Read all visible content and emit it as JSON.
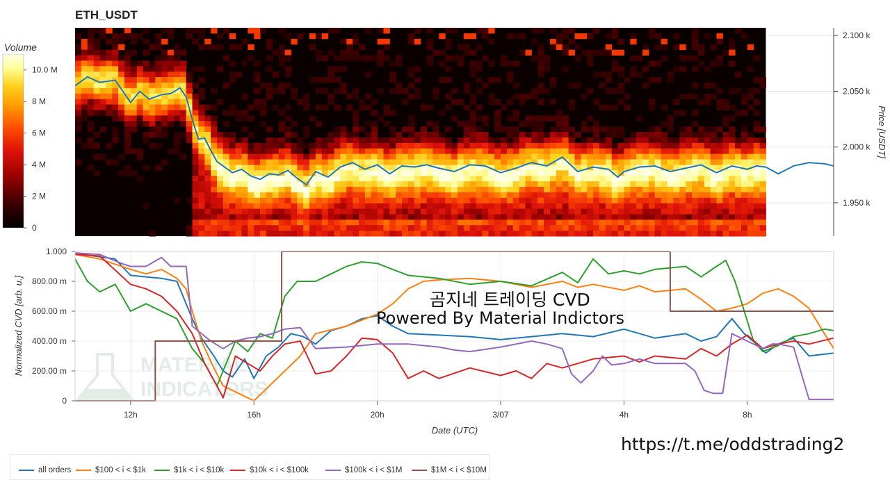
{
  "title": "ETH_USDT",
  "colorbar": {
    "title": "Volume",
    "ticks": [
      "0",
      "2 M",
      "4 M",
      "6 M",
      "8 M",
      "10.0 M"
    ],
    "colors": [
      "#000000",
      "#3b0000",
      "#9a0000",
      "#e0140a",
      "#ff5000",
      "#ff9900",
      "#ffd21e",
      "#ffff9a",
      "#ffffe6"
    ]
  },
  "watermark": {
    "line1": "곰지네 트레이딩 CVD",
    "line2": "Powered By Material Indictors",
    "logo_text": "MATERIAL INDICATORS"
  },
  "url": "https://t.me/oddstrading2",
  "chart_data": [
    {
      "type": "heatmap",
      "title": "ETH_USDT",
      "ylabel": "Price [USDT]",
      "ylim": [
        1920,
        2107
      ],
      "price_ticks": [
        "2.100 k",
        "2.050 k",
        "2.000 k",
        "1.950 k"
      ],
      "price_tick_values": [
        2100,
        2050,
        2000,
        1950
      ],
      "time_ticks": [
        "12h",
        "16h",
        "20h",
        "3/07",
        "4h",
        "8h"
      ],
      "time_tick_values": [
        12,
        16,
        20,
        24,
        28,
        32
      ],
      "xlim": [
        10.2,
        34.8
      ],
      "heatmap_end_hour": 32.6,
      "price_series": {
        "name": "price",
        "color": "#1f77b4",
        "x": [
          10.2,
          10.6,
          11.0,
          11.5,
          12.0,
          12.3,
          12.6,
          13.0,
          13.3,
          13.6,
          13.8,
          14.0,
          14.2,
          14.4,
          14.6,
          14.8,
          15.0,
          15.3,
          15.6,
          15.9,
          16.2,
          16.5,
          16.8,
          17.1,
          17.4,
          17.7,
          18.0,
          18.4,
          18.8,
          19.2,
          19.6,
          20.0,
          20.4,
          20.8,
          21.2,
          21.6,
          22.0,
          22.5,
          23.0,
          23.5,
          24.0,
          24.5,
          25.0,
          25.5,
          26.0,
          26.5,
          27.0,
          27.5,
          27.8,
          28.0,
          28.5,
          29.0,
          29.5,
          30.0,
          30.5,
          31.0,
          31.5,
          32.0,
          32.3,
          32.6,
          33.0,
          33.5,
          34.0,
          34.5,
          34.8
        ],
        "y": [
          2055,
          2063,
          2058,
          2060,
          2040,
          2050,
          2043,
          2047,
          2048,
          2053,
          2045,
          2025,
          2007,
          2008,
          1997,
          1987,
          1983,
          1977,
          1980,
          1974,
          1971,
          1976,
          1975,
          1979,
          1972,
          1966,
          1978,
          1973,
          1982,
          1986,
          1980,
          1984,
          1976,
          1983,
          1982,
          1984,
          1981,
          1978,
          1984,
          1983,
          1977,
          1981,
          1986,
          1983,
          1991,
          1978,
          1982,
          1980,
          1973,
          1978,
          1982,
          1983,
          1978,
          1981,
          1984,
          1977,
          1983,
          1980,
          1983,
          1982,
          1976,
          1983,
          1986,
          1985,
          1983
        ]
      }
    },
    {
      "type": "line",
      "ylabel": "Normalized CVD [arb. u.]",
      "xlabel": "Date (UTC)",
      "ylim": [
        0,
        1
      ],
      "xlim": [
        10.2,
        34.8
      ],
      "y_ticks": [
        "0",
        "200.00 m",
        "400.00 m",
        "600.00 m",
        "800.00 m",
        "1.000"
      ],
      "y_tick_values": [
        0,
        0.2,
        0.4,
        0.6,
        0.8,
        1.0
      ],
      "x_ticks": [
        "12h",
        "16h",
        "20h",
        "3/07",
        "4h",
        "8h"
      ],
      "x_tick_values": [
        12,
        16,
        20,
        24,
        28,
        32
      ],
      "series": [
        {
          "name": "all orders",
          "color": "#1f77b4",
          "x": [
            10.2,
            10.8,
            11.5,
            12.0,
            12.5,
            13.0,
            13.5,
            14.0,
            14.3,
            14.7,
            15.0,
            15.3,
            15.7,
            16.0,
            16.4,
            16.8,
            17.2,
            17.6,
            18.0,
            18.5,
            19.0,
            19.5,
            20.0,
            20.5,
            21.0,
            22.0,
            23.0,
            24.0,
            25.0,
            26.0,
            27.0,
            28.0,
            29.0,
            30.0,
            30.5,
            31.0,
            31.5,
            31.9,
            32.3,
            32.6,
            33.0,
            33.5,
            34.0,
            34.8
          ],
          "y": [
            0.99,
            0.97,
            0.95,
            0.84,
            0.83,
            0.82,
            0.8,
            0.55,
            0.42,
            0.3,
            0.2,
            0.16,
            0.28,
            0.15,
            0.3,
            0.36,
            0.45,
            0.43,
            0.38,
            0.47,
            0.5,
            0.55,
            0.57,
            0.5,
            0.45,
            0.44,
            0.43,
            0.41,
            0.43,
            0.45,
            0.43,
            0.48,
            0.42,
            0.45,
            0.4,
            0.43,
            0.55,
            0.45,
            0.38,
            0.32,
            0.38,
            0.42,
            0.3,
            0.32
          ]
        },
        {
          "name": "$100 < i < $1k",
          "color": "#ff7f0e",
          "x": [
            10.2,
            11.0,
            12.0,
            12.5,
            13.0,
            13.5,
            13.8,
            14.0,
            14.3,
            14.7,
            15.0,
            15.5,
            16.0,
            16.5,
            17.0,
            17.5,
            18.0,
            19.0,
            20.0,
            20.5,
            21.0,
            21.5,
            22.0,
            23.0,
            24.0,
            25.0,
            26.0,
            26.5,
            27.0,
            28.0,
            28.5,
            29.0,
            30.0,
            30.5,
            31.0,
            31.5,
            32.0,
            32.5,
            33.0,
            33.5,
            34.0,
            34.5,
            34.8
          ],
          "y": [
            0.98,
            0.95,
            0.88,
            0.85,
            0.88,
            0.82,
            0.75,
            0.6,
            0.4,
            0.22,
            0.1,
            0.05,
            0.0,
            0.1,
            0.2,
            0.3,
            0.45,
            0.5,
            0.58,
            0.65,
            0.75,
            0.8,
            0.81,
            0.82,
            0.8,
            0.76,
            0.8,
            0.76,
            0.78,
            0.74,
            0.77,
            0.73,
            0.75,
            0.68,
            0.6,
            0.62,
            0.65,
            0.72,
            0.75,
            0.7,
            0.62,
            0.45,
            0.35
          ]
        },
        {
          "name": "$1k < i < $10k",
          "color": "#2ca02c",
          "x": [
            10.2,
            10.6,
            11.0,
            11.5,
            12.0,
            12.5,
            13.0,
            13.5,
            14.0,
            14.4,
            14.8,
            15.0,
            15.4,
            15.8,
            16.2,
            16.6,
            17.0,
            17.4,
            18.0,
            18.5,
            19.0,
            19.5,
            20.0,
            20.5,
            21.0,
            22.0,
            23.0,
            24.0,
            25.0,
            26.0,
            26.5,
            27.0,
            27.5,
            28.0,
            28.5,
            29.0,
            30.0,
            30.5,
            31.0,
            31.3,
            31.6,
            31.9,
            32.2,
            32.5,
            33.0,
            33.5,
            34.0,
            34.5,
            34.8
          ],
          "y": [
            0.95,
            0.8,
            0.73,
            0.78,
            0.6,
            0.65,
            0.6,
            0.55,
            0.35,
            0.25,
            0.1,
            0.2,
            0.4,
            0.33,
            0.45,
            0.42,
            0.7,
            0.8,
            0.8,
            0.85,
            0.9,
            0.93,
            0.92,
            0.88,
            0.84,
            0.82,
            0.78,
            0.8,
            0.77,
            0.86,
            0.79,
            0.95,
            0.85,
            0.87,
            0.85,
            0.88,
            0.9,
            0.83,
            0.9,
            0.94,
            0.8,
            0.6,
            0.4,
            0.33,
            0.37,
            0.43,
            0.45,
            0.48,
            0.47
          ]
        },
        {
          "name": "$10k < i < $100k",
          "color": "#d62728",
          "x": [
            10.2,
            11.0,
            12.0,
            12.5,
            13.0,
            13.5,
            14.0,
            14.4,
            14.8,
            15.0,
            15.4,
            15.8,
            16.2,
            16.6,
            17.0,
            17.5,
            18.0,
            18.5,
            19.0,
            19.5,
            20.0,
            20.5,
            21.0,
            21.5,
            22.0,
            23.0,
            24.0,
            24.5,
            25.0,
            25.5,
            26.0,
            27.0,
            28.0,
            28.5,
            29.0,
            30.0,
            30.5,
            31.0,
            31.5,
            32.0,
            32.5,
            33.0,
            33.5,
            34.0,
            34.8
          ],
          "y": [
            0.98,
            0.97,
            0.78,
            0.75,
            0.7,
            0.6,
            0.45,
            0.25,
            0.1,
            0.02,
            0.3,
            0.25,
            0.2,
            0.3,
            0.38,
            0.4,
            0.18,
            0.2,
            0.3,
            0.42,
            0.41,
            0.32,
            0.15,
            0.2,
            0.15,
            0.22,
            0.17,
            0.2,
            0.15,
            0.25,
            0.22,
            0.28,
            0.3,
            0.26,
            0.3,
            0.28,
            0.35,
            0.3,
            0.38,
            0.44,
            0.35,
            0.38,
            0.4,
            0.38,
            0.42
          ]
        },
        {
          "name": "$100k < i < $1M",
          "color": "#9467bd",
          "x": [
            10.2,
            11.0,
            11.7,
            12.0,
            12.5,
            13.0,
            13.3,
            13.8,
            14.0,
            14.3,
            14.6,
            15.0,
            15.4,
            15.8,
            16.2,
            16.6,
            17.0,
            17.5,
            18.0,
            19.0,
            20.0,
            21.0,
            22.0,
            22.5,
            23.0,
            24.0,
            25.0,
            25.5,
            26.0,
            26.3,
            26.6,
            27.0,
            27.3,
            27.6,
            28.0,
            28.5,
            29.0,
            29.5,
            30.0,
            30.3,
            30.6,
            30.9,
            31.2,
            31.5,
            32.0,
            32.5,
            32.8,
            33.0,
            33.5,
            34.0,
            34.8
          ],
          "y": [
            0.99,
            0.98,
            0.92,
            0.9,
            0.9,
            0.96,
            0.9,
            0.9,
            0.5,
            0.45,
            0.4,
            0.35,
            0.4,
            0.42,
            0.43,
            0.45,
            0.48,
            0.49,
            0.35,
            0.36,
            0.38,
            0.38,
            0.36,
            0.34,
            0.33,
            0.36,
            0.4,
            0.38,
            0.35,
            0.18,
            0.12,
            0.2,
            0.3,
            0.24,
            0.25,
            0.28,
            0.25,
            0.25,
            0.25,
            0.2,
            0.07,
            0.05,
            0.05,
            0.45,
            0.4,
            0.35,
            0.38,
            0.38,
            0.36,
            0.01,
            0.01
          ]
        },
        {
          "name": "$1M < i < $10M",
          "color": "#8c564b",
          "x": [
            10.2,
            12.8,
            12.8,
            16.9,
            16.9,
            29.5,
            29.5,
            34.8
          ],
          "y": [
            0.0,
            0.0,
            0.4,
            0.4,
            1.0,
            1.0,
            0.6,
            0.6
          ]
        }
      ]
    }
  ]
}
